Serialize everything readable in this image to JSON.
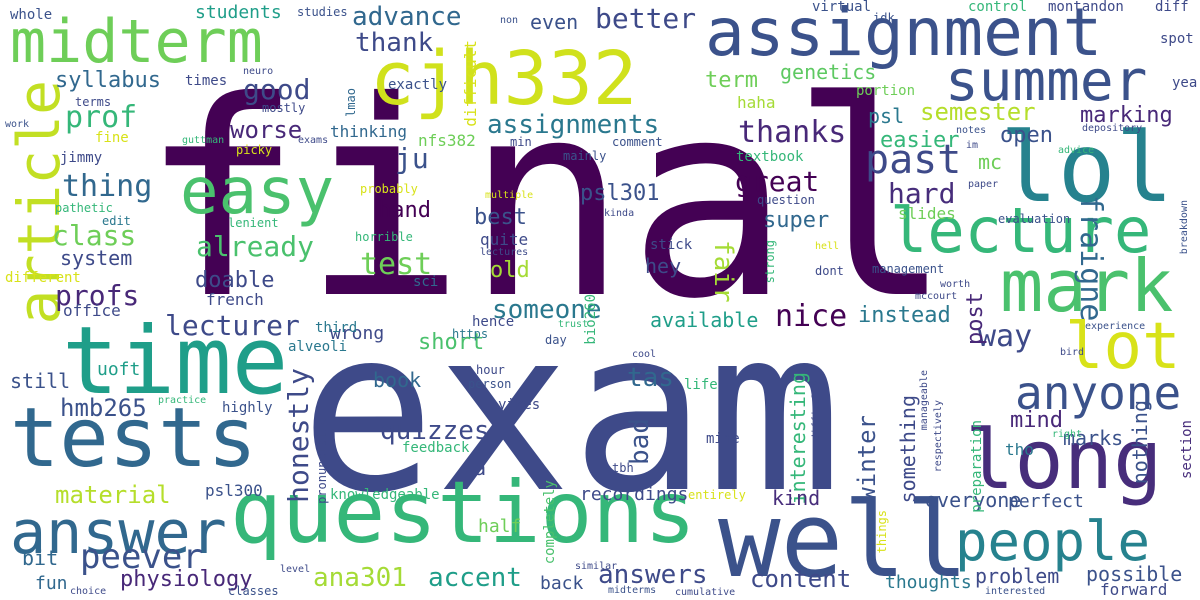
{
  "words": [
    {
      "text": "final",
      "color": "#440154"
    },
    {
      "text": "exam",
      "color": "#3e4a89"
    },
    {
      "text": "questions",
      "color": "#35b779"
    },
    {
      "text": "time",
      "color": "#1f9e89"
    },
    {
      "text": "well",
      "color": "#3b528b"
    },
    {
      "text": "tests",
      "color": "#31688e"
    },
    {
      "text": "assignment",
      "color": "#3b528b"
    },
    {
      "text": "cjh332",
      "color": "#d0e11c"
    },
    {
      "text": "summer",
      "color": "#3b528b"
    },
    {
      "text": "midterm",
      "color": "#6ece58"
    },
    {
      "text": "lol",
      "color": "#26828e"
    },
    {
      "text": "mark",
      "color": "#4ac16d"
    },
    {
      "text": "lecture",
      "color": "#35b779"
    },
    {
      "text": "easy",
      "color": "#4ac16d"
    },
    {
      "text": "article",
      "color": "#c2df23"
    },
    {
      "text": "long",
      "color": "#472d7b"
    },
    {
      "text": "lot",
      "color": "#d8e219"
    },
    {
      "text": "answer",
      "color": "#31688e"
    },
    {
      "text": "people",
      "color": "#26828e"
    },
    {
      "text": "anyone",
      "color": "#3b528b"
    },
    {
      "text": "advance",
      "color": "#31688e"
    },
    {
      "text": "thank",
      "color": "#3e4a89"
    },
    {
      "text": "better",
      "color": "#3e4a89"
    },
    {
      "text": "even",
      "color": "#3b528b"
    },
    {
      "text": "term",
      "color": "#6ece58"
    },
    {
      "text": "genetics",
      "color": "#5ec962"
    },
    {
      "text": "good",
      "color": "#3e4a89"
    },
    {
      "text": "syllabus",
      "color": "#31688e"
    },
    {
      "text": "prof",
      "color": "#35b779"
    },
    {
      "text": "worse",
      "color": "#482878"
    },
    {
      "text": "assignments",
      "color": "#2a788e"
    },
    {
      "text": "past",
      "color": "#3e4a89"
    },
    {
      "text": "semester",
      "color": "#b5de2b"
    },
    {
      "text": "marking",
      "color": "#482878"
    },
    {
      "text": "thanks",
      "color": "#482878"
    },
    {
      "text": "ju",
      "color": "#3b528b"
    },
    {
      "text": "thing",
      "color": "#31688e"
    },
    {
      "text": "great",
      "color": "#440154"
    },
    {
      "text": "hard",
      "color": "#472d7b"
    },
    {
      "text": "fraigne",
      "color": "#31688e"
    },
    {
      "text": "class",
      "color": "#6ece58"
    },
    {
      "text": "already",
      "color": "#4ac16d"
    },
    {
      "text": "psl301",
      "color": "#3b528b"
    },
    {
      "text": "best",
      "color": "#3b528b"
    },
    {
      "text": "super",
      "color": "#31688e"
    },
    {
      "text": "hand",
      "color": "#440154"
    },
    {
      "text": "test",
      "color": "#6ece58"
    },
    {
      "text": "fair",
      "color": "#a5db36"
    },
    {
      "text": "system",
      "color": "#3e4a89"
    },
    {
      "text": "doable",
      "color": "#3e4a89"
    },
    {
      "text": "profs",
      "color": "#482878"
    },
    {
      "text": "lecturer",
      "color": "#3e4a89"
    },
    {
      "text": "someone",
      "color": "#2a788e"
    },
    {
      "text": "nice",
      "color": "#440154"
    },
    {
      "text": "instead",
      "color": "#2a788e"
    },
    {
      "text": "way",
      "color": "#3e4a89"
    },
    {
      "text": "old",
      "color": "#a5db36"
    },
    {
      "text": "hey",
      "color": "#3e4a89"
    },
    {
      "text": "wrong",
      "color": "#3e4a89"
    },
    {
      "text": "short",
      "color": "#4ac16d"
    },
    {
      "text": "available",
      "color": "#1f9e89"
    },
    {
      "text": "post",
      "color": "#482878"
    },
    {
      "text": "open",
      "color": "#3b528b"
    },
    {
      "text": "mc",
      "color": "#6ece58"
    },
    {
      "text": "easier",
      "color": "#35b779"
    },
    {
      "text": "slides",
      "color": "#6ece58"
    },
    {
      "text": "psl",
      "color": "#2a788e"
    },
    {
      "text": "honestly",
      "color": "#3e4a89"
    },
    {
      "text": "quizzes",
      "color": "#3e4a89"
    },
    {
      "text": "tas",
      "color": "#31688e"
    },
    {
      "text": "bad",
      "color": "#3b528b"
    },
    {
      "text": "interesting",
      "color": "#35b779"
    },
    {
      "text": "winter",
      "color": "#3b528b"
    },
    {
      "text": "something",
      "color": "#3e4a89"
    },
    {
      "text": "mind",
      "color": "#482878"
    },
    {
      "text": "marks",
      "color": "#3b528b"
    },
    {
      "text": "nothing",
      "color": "#3b528b"
    },
    {
      "text": "hmb265",
      "color": "#3b528b"
    },
    {
      "text": "still",
      "color": "#3b528b"
    },
    {
      "text": "uoft",
      "color": "#1f9e89"
    },
    {
      "text": "book",
      "color": "#31688e"
    },
    {
      "text": "material",
      "color": "#b5de2b"
    },
    {
      "text": "ta",
      "color": "#3e4a89"
    },
    {
      "text": "kind",
      "color": "#472d7b"
    },
    {
      "text": "everyone",
      "color": "#3b528b"
    },
    {
      "text": "perfect",
      "color": "#3b528b"
    },
    {
      "text": "peever",
      "color": "#3b528b"
    },
    {
      "text": "ana301",
      "color": "#a5db36"
    },
    {
      "text": "accent",
      "color": "#1f9e89"
    },
    {
      "text": "answers",
      "color": "#3e4a89"
    },
    {
      "text": "content",
      "color": "#3e4a89"
    },
    {
      "text": "problem",
      "color": "#3e4a89"
    },
    {
      "text": "possible",
      "color": "#3b528b"
    },
    {
      "text": "physiology",
      "color": "#482878"
    },
    {
      "text": "bit",
      "color": "#31688e"
    },
    {
      "text": "fun",
      "color": "#31688e"
    },
    {
      "text": "back",
      "color": "#3b528b"
    },
    {
      "text": "recordings",
      "color": "#3e4a89"
    },
    {
      "text": "thoughts",
      "color": "#2a788e"
    },
    {
      "text": "forward",
      "color": "#3e4a89"
    },
    {
      "text": "psl300",
      "color": "#3b528b"
    },
    {
      "text": "knowledgeable",
      "color": "#35b779"
    },
    {
      "text": "half",
      "color": "#6ece58"
    },
    {
      "text": "completely",
      "color": "#4ac16d"
    },
    {
      "text": "preparation",
      "color": "#35b779"
    },
    {
      "text": "tho",
      "color": "#2a788e"
    },
    {
      "text": "section",
      "color": "#472d7b"
    },
    {
      "text": "yea",
      "color": "#3e4a89"
    },
    {
      "text": "students",
      "color": "#1f9e89"
    },
    {
      "text": "studies",
      "color": "#3b528b"
    },
    {
      "text": "whole",
      "color": "#3b528b"
    },
    {
      "text": "virtual",
      "color": "#3b528b"
    },
    {
      "text": "control",
      "color": "#35b779"
    },
    {
      "text": "montandon",
      "color": "#3e4a89"
    },
    {
      "text": "diff",
      "color": "#3e4a89"
    },
    {
      "text": "spot",
      "color": "#3e4a89"
    },
    {
      "text": "idk",
      "color": "#3b528b"
    },
    {
      "text": "non",
      "color": "#3b528b"
    },
    {
      "text": "difficult",
      "color": "#d8e219"
    },
    {
      "text": "exactly",
      "color": "#3b528b"
    },
    {
      "text": "neuro",
      "color": "#3e4a89"
    },
    {
      "text": "times",
      "color": "#3e4a89"
    },
    {
      "text": "terms",
      "color": "#3e4a89"
    },
    {
      "text": "mostly",
      "color": "#3e4a89"
    },
    {
      "text": "lmao",
      "color": "#31688e"
    },
    {
      "text": "work",
      "color": "#3b528b"
    },
    {
      "text": "fine",
      "color": "#d8e219"
    },
    {
      "text": "guttman",
      "color": "#35b779"
    },
    {
      "text": "exams",
      "color": "#3e4a89"
    },
    {
      "text": "thinking",
      "color": "#31688e"
    },
    {
      "text": "nfs382",
      "color": "#6ece58"
    },
    {
      "text": "portion",
      "color": "#6ece58"
    },
    {
      "text": "haha",
      "color": "#a5db36"
    },
    {
      "text": "jimmy",
      "color": "#3e4a89"
    },
    {
      "text": "picky",
      "color": "#d8e219"
    },
    {
      "text": "min",
      "color": "#3e4a89"
    },
    {
      "text": "comment",
      "color": "#3b528b"
    },
    {
      "text": "mainly",
      "color": "#3b528b"
    },
    {
      "text": "textbook",
      "color": "#35b779"
    },
    {
      "text": "notes",
      "color": "#3b528b"
    },
    {
      "text": "im",
      "color": "#3e4a89"
    },
    {
      "text": "depository",
      "color": "#3e4a89"
    },
    {
      "text": "advice",
      "color": "#35b779"
    },
    {
      "text": "pathetic",
      "color": "#35b779"
    },
    {
      "text": "probably",
      "color": "#d8e219"
    },
    {
      "text": "multiple",
      "color": "#d8e219"
    },
    {
      "text": "edit",
      "color": "#2a788e"
    },
    {
      "text": "lenient",
      "color": "#35b779"
    },
    {
      "text": "kinda",
      "color": "#3e4a89"
    },
    {
      "text": "question",
      "color": "#3e4a89"
    },
    {
      "text": "paper",
      "color": "#3e4a89"
    },
    {
      "text": "evaluation",
      "color": "#3b528b"
    },
    {
      "text": "breakdown",
      "color": "#3b528b"
    },
    {
      "text": "different",
      "color": "#d8e219"
    },
    {
      "text": "horrible",
      "color": "#35b779"
    },
    {
      "text": "quite",
      "color": "#3e4a89"
    },
    {
      "text": "lectures",
      "color": "#3e4a89"
    },
    {
      "text": "stick",
      "color": "#3e4a89"
    },
    {
      "text": "hell",
      "color": "#d8e219"
    },
    {
      "text": "dont",
      "color": "#3e4a89"
    },
    {
      "text": "strong",
      "color": "#35b779"
    },
    {
      "text": "management",
      "color": "#3b528b"
    },
    {
      "text": "worth",
      "color": "#3e4a89"
    },
    {
      "text": "mccourt",
      "color": "#3e4a89"
    },
    {
      "text": "office",
      "color": "#3e4a89"
    },
    {
      "text": "french",
      "color": "#3e4a89"
    },
    {
      "text": "sci",
      "color": "#31688e"
    },
    {
      "text": "bio260",
      "color": "#35b779"
    },
    {
      "text": "hence",
      "color": "#3e4a89"
    },
    {
      "text": "https",
      "color": "#2a788e"
    },
    {
      "text": "third",
      "color": "#2a788e"
    },
    {
      "text": "alveoli",
      "color": "#2a788e"
    },
    {
      "text": "day",
      "color": "#3b528b"
    },
    {
      "text": "trust",
      "color": "#35b779"
    },
    {
      "text": "experience",
      "color": "#3b528b"
    },
    {
      "text": "cool",
      "color": "#3e4a89"
    },
    {
      "text": "bird",
      "color": "#3e4a89"
    },
    {
      "text": "hour",
      "color": "#3e4a89"
    },
    {
      "text": "person",
      "color": "#3b528b"
    },
    {
      "text": "life",
      "color": "#35b779"
    },
    {
      "text": "difficulty",
      "color": "#3e4a89"
    },
    {
      "text": "manageable",
      "color": "#3e4a89"
    },
    {
      "text": "practice",
      "color": "#35b779"
    },
    {
      "text": "highly",
      "color": "#3b528b"
    },
    {
      "text": "pronunciation",
      "color": "#3e4a89"
    },
    {
      "text": "yikes",
      "color": "#3e4a89"
    },
    {
      "text": "mine",
      "color": "#3e4a89"
    },
    {
      "text": "respectively",
      "color": "#3e4a89"
    },
    {
      "text": "right",
      "color": "#35b779"
    },
    {
      "text": "feedback",
      "color": "#35b779"
    },
    {
      "text": "tbh",
      "color": "#3e4a89"
    },
    {
      "text": "entirely",
      "color": "#d8e219"
    },
    {
      "text": "things",
      "color": "#d8e219"
    },
    {
      "text": "level",
      "color": "#3e4a89"
    },
    {
      "text": "similar",
      "color": "#3e4a89"
    },
    {
      "text": "classes",
      "color": "#3b528b"
    },
    {
      "text": "midterms",
      "color": "#3b528b"
    },
    {
      "text": "cumulative",
      "color": "#3e4a89"
    },
    {
      "text": "choice",
      "color": "#3e4a89"
    },
    {
      "text": "interested",
      "color": "#3b528b"
    }
  ]
}
